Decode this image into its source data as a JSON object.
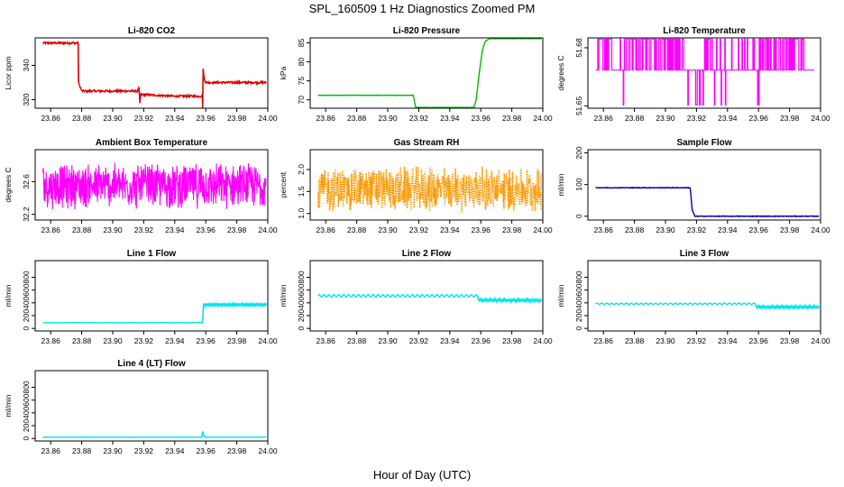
{
  "main_title": "SPL_160509  1 Hz Diagnostics Zoomed PM",
  "xlabel": "Hour of Day (UTC)",
  "chart_data": [
    {
      "type": "line",
      "title": "Li-820 CO2",
      "ylabel": "Licor ppm",
      "color": "#dd0000",
      "xlim": [
        23.85,
        24.0
      ],
      "ylim": [
        315,
        356
      ],
      "yticks": [
        320,
        340
      ],
      "xticks": [
        "23.86",
        "23.88",
        "23.90",
        "23.92",
        "23.94",
        "23.96",
        "23.98",
        "24.00"
      ],
      "noise": 0.6,
      "x": [
        23.855,
        23.8778,
        23.8779,
        23.88,
        23.916,
        23.917,
        23.9175,
        23.918,
        23.94,
        23.9578,
        23.958,
        23.9583,
        23.959,
        23.96,
        23.999
      ],
      "y": [
        353,
        353,
        330,
        325,
        325,
        327,
        318,
        323,
        322,
        322,
        315,
        338,
        332,
        330,
        330
      ]
    },
    {
      "type": "line",
      "title": "Li-820 Pressure",
      "ylabel": "kPa",
      "color": "#00bb00",
      "xlim": [
        23.85,
        24.0
      ],
      "ylim": [
        67.8,
        86.3
      ],
      "yticks": [
        70,
        75,
        80,
        85
      ],
      "xticks": [
        "23.86",
        "23.88",
        "23.90",
        "23.92",
        "23.94",
        "23.96",
        "23.98",
        "24.00"
      ],
      "noise": 0.05,
      "x": [
        23.855,
        23.9165,
        23.918,
        23.9555,
        23.957,
        23.959,
        23.961,
        23.963,
        23.966,
        23.999
      ],
      "y": [
        71.2,
        71.2,
        68.0,
        68.0,
        70.0,
        77.0,
        83.0,
        85.5,
        86.1,
        86.1
      ]
    },
    {
      "type": "step",
      "title": "Li-820 Temperature",
      "ylabel": "degrees C",
      "color": "#ff00ff",
      "xlim": [
        23.85,
        24.0
      ],
      "ylim": [
        51.6488,
        51.6851
      ],
      "yticks": [
        51.65,
        51.68
      ],
      "ytick_labels": [
        "51.65",
        "51.68"
      ],
      "xticks": [
        "23.86",
        "23.88",
        "23.90",
        "23.92",
        "23.94",
        "23.96",
        "23.98",
        "24.00"
      ],
      "levels": [
        51.6505,
        51.6685,
        51.6845
      ],
      "x_end": 23.996
    },
    {
      "type": "noise",
      "title": "Ambient Box Temperature",
      "ylabel": "degrees C",
      "color": "#ff00ff",
      "xlim": [
        23.85,
        24.0
      ],
      "ylim": [
        32.13,
        32.99
      ],
      "yticks": [
        32.2,
        32.6
      ],
      "xticks": [
        "23.86",
        "23.88",
        "23.90",
        "23.92",
        "23.94",
        "23.96",
        "23.98",
        "24.00"
      ],
      "center": 32.55,
      "amplitude": 0.3
    },
    {
      "type": "noise",
      "title": "Gas Stream RH",
      "ylabel": "percent",
      "color": "#ff9900",
      "dots": true,
      "xlim": [
        23.85,
        24.0
      ],
      "ylim": [
        0.85,
        2.45
      ],
      "yticks": [
        1.0,
        1.5,
        2.0
      ],
      "ytick_labels": [
        "1.0",
        "1.5",
        "2.0"
      ],
      "xticks": [
        "23.86",
        "23.88",
        "23.90",
        "23.92",
        "23.94",
        "23.96",
        "23.98",
        "24.00"
      ],
      "center": 1.55,
      "amplitude": 0.55
    },
    {
      "type": "line",
      "title": "Sample Flow",
      "ylabel": "ml/min",
      "color": "#0000bb",
      "xlim": [
        23.85,
        24.0
      ],
      "ylim": [
        -12,
        210
      ],
      "yticks": [
        0,
        100,
        200
      ],
      "xticks": [
        "23.86",
        "23.88",
        "23.90",
        "23.92",
        "23.94",
        "23.96",
        "23.98",
        "24.00"
      ],
      "noise": 1.0,
      "x": [
        23.855,
        23.916,
        23.9172,
        23.919,
        23.999
      ],
      "y": [
        90,
        90,
        20,
        0,
        0
      ]
    },
    {
      "type": "line",
      "title": "Line 1 Flow",
      "ylabel": "ml/min",
      "color": "#00e5ee",
      "xlim": [
        23.85,
        24.0
      ],
      "ylim": [
        -40,
        1060
      ],
      "yticks": [
        0,
        200,
        400,
        600,
        800
      ],
      "xticks": [
        "23.86",
        "23.88",
        "23.90",
        "23.92",
        "23.94",
        "23.96",
        "23.98",
        "24.00"
      ],
      "noise": 2,
      "wave_after": 23.9585,
      "wave_amp": 22,
      "x": [
        23.855,
        23.958,
        23.9585,
        23.999
      ],
      "y": [
        90,
        90,
        370,
        370
      ]
    },
    {
      "type": "line",
      "title": "Line 2 Flow",
      "ylabel": "ml/min",
      "color": "#00e5ee",
      "xlim": [
        23.85,
        24.0
      ],
      "ylim": [
        -40,
        1060
      ],
      "yticks": [
        0,
        200,
        400,
        600,
        800
      ],
      "xticks": [
        "23.86",
        "23.88",
        "23.90",
        "23.92",
        "23.94",
        "23.96",
        "23.98",
        "24.00"
      ],
      "noise": 2,
      "wave_all": 18,
      "wave_after": 23.9585,
      "wave_amp": 20,
      "x": [
        23.855,
        23.958,
        23.9585,
        23.999
      ],
      "y": [
        510,
        510,
        440,
        440
      ]
    },
    {
      "type": "line",
      "title": "Line 3 Flow",
      "ylabel": "ml/min",
      "color": "#00e5ee",
      "xlim": [
        23.85,
        24.0
      ],
      "ylim": [
        -40,
        1060
      ],
      "yticks": [
        0,
        200,
        400,
        600,
        800
      ],
      "xticks": [
        "23.86",
        "23.88",
        "23.90",
        "23.92",
        "23.94",
        "23.96",
        "23.98",
        "24.00"
      ],
      "noise": 2,
      "wave_all": 10,
      "wave_after": 23.9585,
      "wave_amp": 18,
      "x": [
        23.855,
        23.958,
        23.9585,
        23.999
      ],
      "y": [
        385,
        385,
        335,
        335
      ]
    },
    {
      "type": "line",
      "title": "Line 4 (LT) Flow",
      "ylabel": "ml/min",
      "color": "#00e5ee",
      "xlim": [
        23.85,
        24.0
      ],
      "ylim": [
        -40,
        1060
      ],
      "yticks": [
        0,
        200,
        400,
        600,
        800
      ],
      "xticks": [
        "23.86",
        "23.88",
        "23.90",
        "23.92",
        "23.94",
        "23.96",
        "23.98",
        "24.00"
      ],
      "noise": 2,
      "x": [
        23.855,
        23.9575,
        23.958,
        23.9585,
        23.9595,
        23.999
      ],
      "y": [
        20,
        20,
        110,
        60,
        20,
        20
      ]
    }
  ]
}
